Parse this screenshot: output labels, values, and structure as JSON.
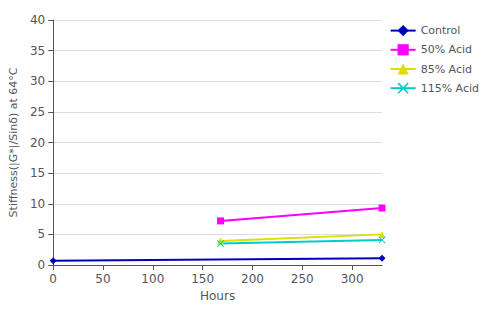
{
  "chart_data": {
    "type": "line",
    "xlabel": "Hours",
    "ylabel": "Stiffness(|G*|/Sinδ) at 64°C",
    "series": [
      {
        "name": "Control",
        "color": "#0000BB",
        "marker": "diamond",
        "x": [
          0,
          330
        ],
        "values": [
          0.7,
          1.1
        ]
      },
      {
        "name": "50% Acid",
        "color": "#FF00FF",
        "marker": "square",
        "x": [
          168,
          330
        ],
        "values": [
          7.2,
          9.3
        ]
      },
      {
        "name": "85% Acid",
        "color": "#DDDD00",
        "marker": "triangle",
        "x": [
          168,
          330
        ],
        "values": [
          3.9,
          5.0
        ]
      },
      {
        "name": "115% Acid",
        "color": "#00CCCC",
        "marker": "x",
        "x": [
          168,
          330
        ],
        "values": [
          3.5,
          4.1
        ]
      }
    ],
    "xlim": [
      0,
      330
    ],
    "xticks": [
      0,
      50,
      100,
      150,
      200,
      250,
      300
    ],
    "ylim": [
      0,
      40
    ],
    "yticks": [
      0,
      5,
      10,
      15,
      20,
      25,
      30,
      35,
      40
    ],
    "grid": true,
    "legend": "upper right"
  }
}
